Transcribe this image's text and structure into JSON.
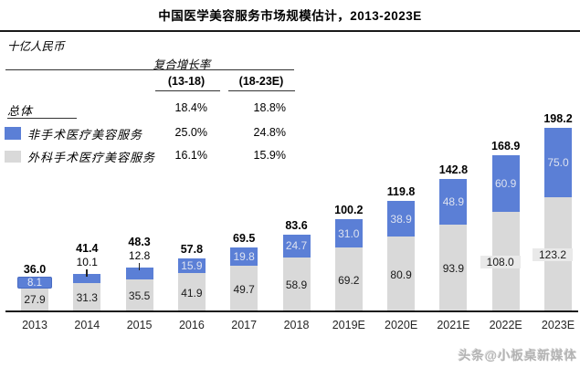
{
  "title": "中国医学美容服务市场规模估计，2013-2023E",
  "unit_label": "十亿人民币",
  "cagr_table": {
    "header": "复合增长率",
    "col1": "(13-18)",
    "col2": "(18-23E)",
    "rows": [
      {
        "label": "总体",
        "v1": "18.4%",
        "v2": "18.8%"
      },
      {
        "label": "非手术医疗美容服务",
        "v1": "25.0%",
        "v2": "24.8%"
      },
      {
        "label": "外科手术医疗美容服务",
        "v1": "16.1%",
        "v2": "15.9%"
      }
    ]
  },
  "watermark": "头条@小板桌新媒体",
  "colors": {
    "blue": "#5b7fd6",
    "gray": "#d9d9d9",
    "blue_box_border": "#4a6cc2",
    "gray_label_box": "#e9e9e9"
  },
  "chart_data": {
    "type": "bar",
    "stacked": true,
    "title": "中国医学美容服务市场规模估计，2013-2023E",
    "ylabel": "十亿人民币",
    "grid": false,
    "legend_position": "top-left",
    "categories": [
      "2013",
      "2014",
      "2015",
      "2016",
      "2017",
      "2018",
      "2019E",
      "2020E",
      "2021E",
      "2022E",
      "2023E"
    ],
    "series": [
      {
        "name": "非手术医疗美容服务",
        "color_key": "blue",
        "values": [
          8.1,
          10.1,
          12.8,
          15.9,
          19.8,
          24.7,
          31.0,
          38.9,
          48.9,
          60.9,
          75.0
        ]
      },
      {
        "name": "外科手术医疗美容服务",
        "color_key": "gray",
        "values": [
          27.9,
          31.3,
          35.5,
          41.9,
          49.7,
          58.9,
          69.2,
          80.9,
          93.9,
          108.0,
          123.2
        ]
      }
    ],
    "totals": [
      36.0,
      41.4,
      48.3,
      57.8,
      69.5,
      83.6,
      100.2,
      119.8,
      142.8,
      168.9,
      198.2
    ],
    "cagr": {
      "total": {
        "2013_2018": "18.4%",
        "2018_2023E": "18.8%"
      },
      "non_surgical": {
        "2013_2018": "25.0%",
        "2018_2023E": "24.8%"
      },
      "surgical": {
        "2013_2018": "16.1%",
        "2018_2023E": "15.9%"
      }
    }
  }
}
